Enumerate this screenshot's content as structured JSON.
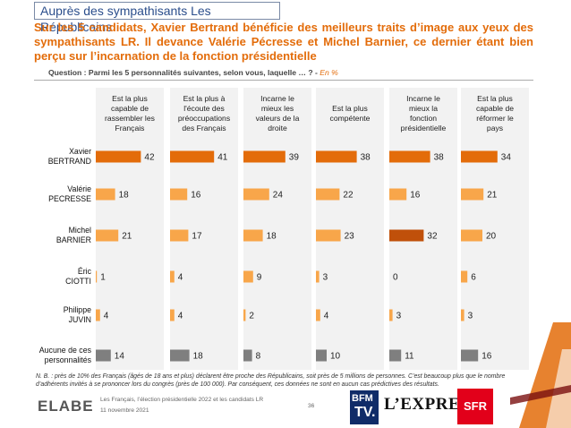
{
  "header": {
    "tag": "Auprès des sympathisants Les Républicains",
    "headline": "Sur les 5 candidats, Xavier Bertrand bénéficie des meilleurs traits d’image aux yeux des sympathisants LR. Il devance Valérie Pécresse et Michel Barnier, ce dernier étant bien perçu sur l’incarnation de la fonction présidentielle",
    "question": "Question : Parmi les 5 personnalités suivantes, selon vous, laquelle … ? -",
    "question_unit": "En %"
  },
  "chart_data": {
    "type": "bar",
    "title": "",
    "unit": "En %",
    "categories": [
      "Xavier BERTRAND",
      "Valérie PECRESSE",
      "Michel BARNIER",
      "Éric CIOTTI",
      "Philippe JUVIN",
      "Aucune de ces personnalités"
    ],
    "series": [
      {
        "name": "Est la plus capable de rassembler les Français",
        "values": [
          42,
          18,
          21,
          1,
          4,
          14
        ]
      },
      {
        "name": "Est la plus à l'écoute des préoccupations des Français",
        "values": [
          41,
          16,
          17,
          4,
          4,
          18
        ]
      },
      {
        "name": "Incarne le mieux les valeurs de la droite",
        "values": [
          39,
          24,
          18,
          9,
          2,
          8
        ]
      },
      {
        "name": "Est la plus compétente",
        "values": [
          38,
          22,
          23,
          3,
          4,
          10
        ]
      },
      {
        "name": "Incarne le mieux la fonction présidentielle",
        "values": [
          38,
          16,
          32,
          0,
          3,
          11
        ]
      },
      {
        "name": "Est la plus capable de réformer le pays",
        "values": [
          34,
          21,
          20,
          6,
          3,
          16
        ]
      }
    ],
    "colors": {
      "leader": "#e36c0a",
      "other": "#f8a64a",
      "highlight": "#c0500a",
      "none": "#7f7f7f"
    },
    "highlight": [
      {
        "row": 2,
        "col": 4
      }
    ]
  },
  "row_labels": [
    {
      "line1": "Xavier",
      "line2": "BERTRAND"
    },
    {
      "line1": "Valérie",
      "line2": "PECRESSE"
    },
    {
      "line1": "Michel",
      "line2": "BARNIER"
    },
    {
      "line1": "Éric",
      "line2": "CIOTTI"
    },
    {
      "line1": "Philippe",
      "line2": "JUVIN"
    },
    {
      "line1": "Aucune de ces",
      "line2": "personnalités"
    }
  ],
  "column_headers": [
    [
      "Est la plus",
      "capable de",
      "rassembler les",
      "Français"
    ],
    [
      "Est la plus à",
      "l'écoute des",
      "préoccupations",
      "des Français"
    ],
    [
      "Incarne le",
      "mieux les",
      "valeurs de la",
      "droite"
    ],
    [
      "Est la plus",
      "compétente"
    ],
    [
      "Incarne le",
      "mieux la",
      "fonction",
      "présidentielle"
    ],
    [
      "Est la plus",
      "capable de",
      "réformer le",
      "pays"
    ]
  ],
  "note": "N. B. : près de 10% des Français (âgés de 18 ans et plus) déclarent être proche des Républicains, soit près de 5 millions de personnes. C’est beaucoup plus que le nombre d’adhérents invités à se prononcer lors du congrès (près de 100 000). Par conséquent, ces données ne sont en aucun cas prédictives des résultats.",
  "footer": {
    "source": "Les Français, l’élection présidentielle 2022 et les candidats LR",
    "date": "11 novembre 2021",
    "page": "36",
    "brand_elabe": "ELABE",
    "brand_bfm_1": "BFM",
    "brand_bfm_2": "TV.",
    "brand_express": "L’EXPRESS",
    "brand_sfr": "SFR"
  }
}
